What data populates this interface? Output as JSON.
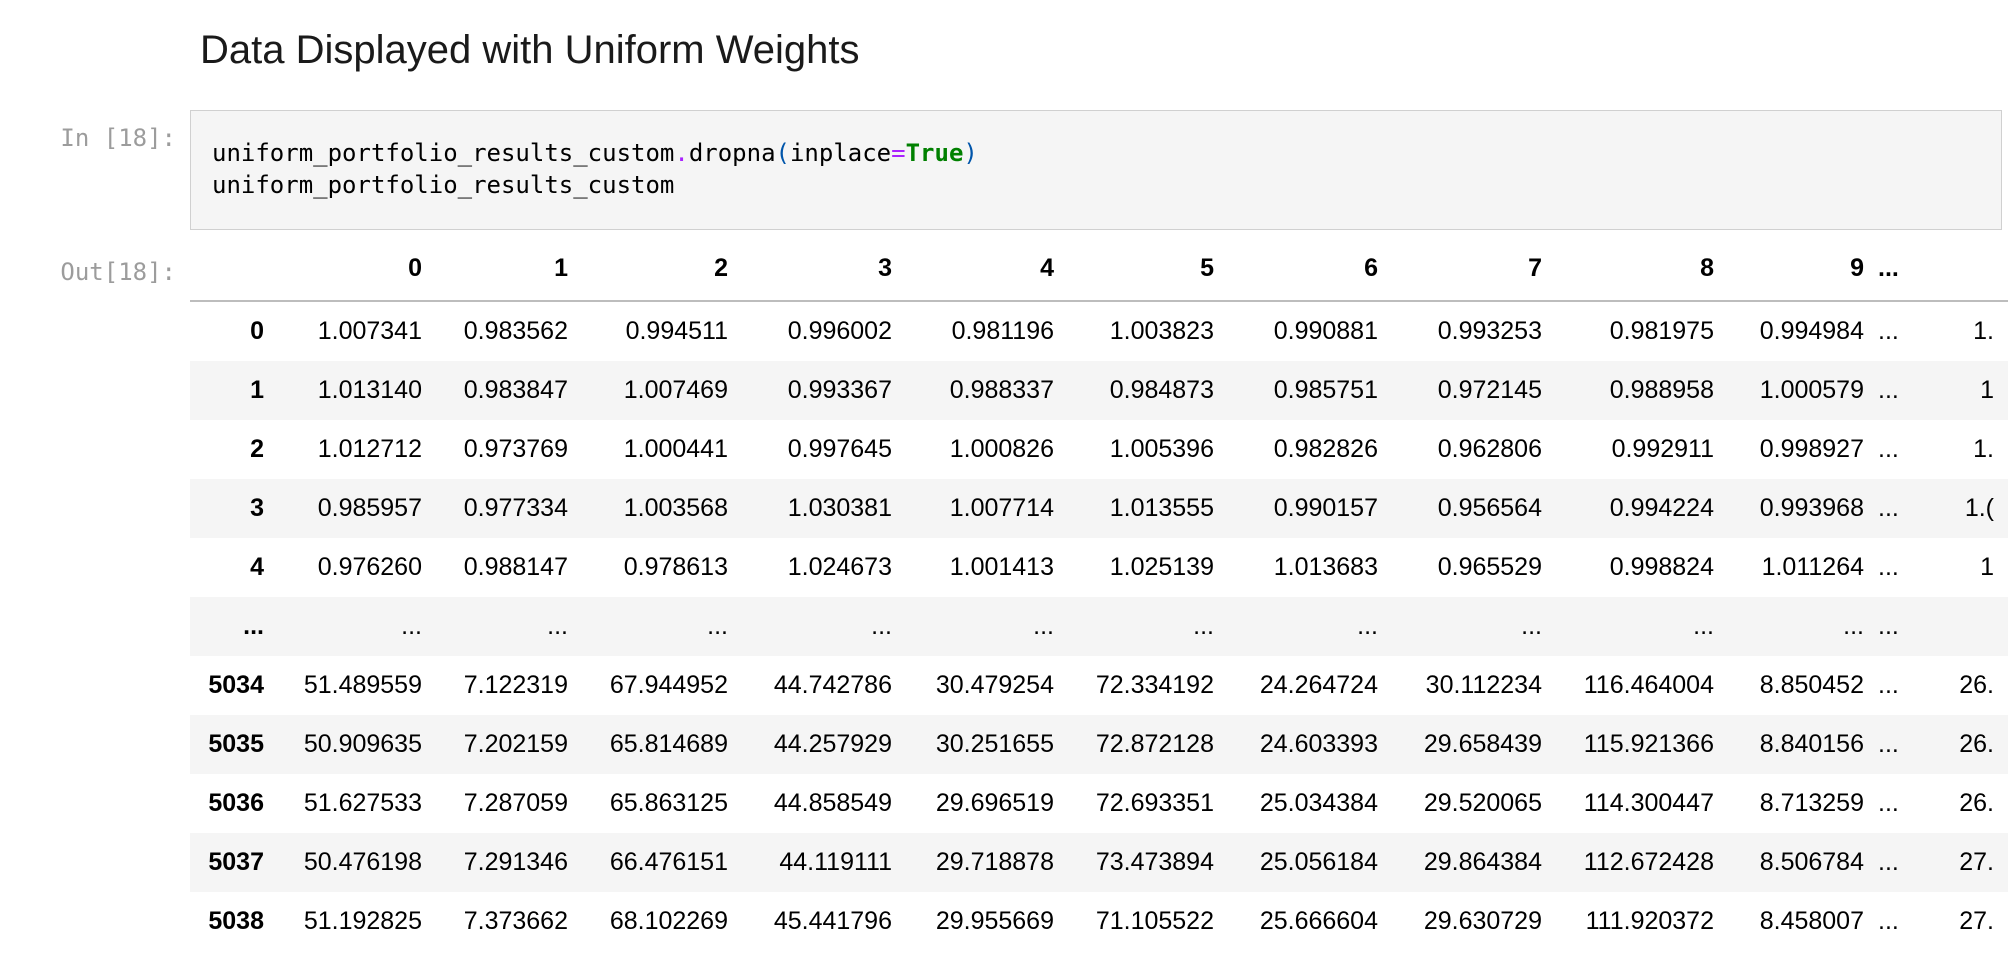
{
  "heading": "Data Displayed with Uniform Weights",
  "cell": {
    "in_prompt": "In [18]:",
    "out_prompt": "Out[18]:",
    "code": {
      "line1": {
        "obj": "uniform_portfolio_results_custom",
        "dot": ".",
        "method": "dropna",
        "open": "(",
        "arg": "inplace",
        "eq": "=",
        "kw": "True",
        "close": ")"
      },
      "line2": "uniform_portfolio_results_custom"
    }
  },
  "table": {
    "columns": [
      "0",
      "1",
      "2",
      "3",
      "4",
      "5",
      "6",
      "7",
      "8",
      "9",
      "...",
      ""
    ],
    "rows": [
      {
        "index": "0",
        "values": [
          "1.007341",
          "0.983562",
          "0.994511",
          "0.996002",
          "0.981196",
          "1.003823",
          "0.990881",
          "0.993253",
          "0.981975",
          "0.994984",
          "...",
          "1."
        ]
      },
      {
        "index": "1",
        "values": [
          "1.013140",
          "0.983847",
          "1.007469",
          "0.993367",
          "0.988337",
          "0.984873",
          "0.985751",
          "0.972145",
          "0.988958",
          "1.000579",
          "...",
          "1"
        ]
      },
      {
        "index": "2",
        "values": [
          "1.012712",
          "0.973769",
          "1.000441",
          "0.997645",
          "1.000826",
          "1.005396",
          "0.982826",
          "0.962806",
          "0.992911",
          "0.998927",
          "...",
          "1."
        ]
      },
      {
        "index": "3",
        "values": [
          "0.985957",
          "0.977334",
          "1.003568",
          "1.030381",
          "1.007714",
          "1.013555",
          "0.990157",
          "0.956564",
          "0.994224",
          "0.993968",
          "...",
          "1.("
        ]
      },
      {
        "index": "4",
        "values": [
          "0.976260",
          "0.988147",
          "0.978613",
          "1.024673",
          "1.001413",
          "1.025139",
          "1.013683",
          "0.965529",
          "0.998824",
          "1.011264",
          "...",
          "1"
        ]
      },
      {
        "index": "...",
        "values": [
          "...",
          "...",
          "...",
          "...",
          "...",
          "...",
          "...",
          "...",
          "...",
          "...",
          "...",
          ""
        ]
      },
      {
        "index": "5034",
        "values": [
          "51.489559",
          "7.122319",
          "67.944952",
          "44.742786",
          "30.479254",
          "72.334192",
          "24.264724",
          "30.112234",
          "116.464004",
          "8.850452",
          "...",
          "26."
        ]
      },
      {
        "index": "5035",
        "values": [
          "50.909635",
          "7.202159",
          "65.814689",
          "44.257929",
          "30.251655",
          "72.872128",
          "24.603393",
          "29.658439",
          "115.921366",
          "8.840156",
          "...",
          "26."
        ]
      },
      {
        "index": "5036",
        "values": [
          "51.627533",
          "7.287059",
          "65.863125",
          "44.858549",
          "29.696519",
          "72.693351",
          "25.034384",
          "29.520065",
          "114.300447",
          "8.713259",
          "...",
          "26."
        ]
      },
      {
        "index": "5037",
        "values": [
          "50.476198",
          "7.291346",
          "66.476151",
          "44.119111",
          "29.718878",
          "73.473894",
          "25.056184",
          "29.864384",
          "112.672428",
          "8.506784",
          "...",
          "27."
        ]
      },
      {
        "index": "5038",
        "values": [
          "51.192825",
          "7.373662",
          "68.102269",
          "45.441796",
          "29.955669",
          "71.105522",
          "25.666604",
          "29.630729",
          "111.920372",
          "8.458007",
          "...",
          "27."
        ]
      }
    ]
  }
}
